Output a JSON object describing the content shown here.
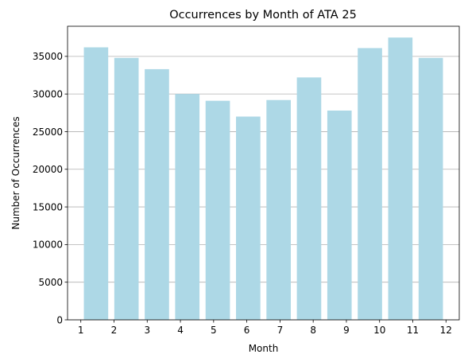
{
  "chart_data": {
    "type": "bar",
    "title": "Occurrences by Month of ATA 25",
    "xlabel": "Month",
    "ylabel": "Number of Occurrences",
    "x_ticks": [
      1,
      2,
      3,
      4,
      5,
      6,
      7,
      8,
      9,
      10,
      11,
      12
    ],
    "categories": [
      "1",
      "2",
      "3",
      "4",
      "5",
      "6",
      "7",
      "8",
      "9",
      "10",
      "11",
      "12"
    ],
    "values": [
      36200,
      34800,
      33300,
      30000,
      29100,
      27000,
      29200,
      32200,
      27800,
      36100,
      37500,
      34800
    ],
    "ylim": [
      0,
      39000
    ],
    "xlim": [
      0.6,
      12.4
    ],
    "y_ticks": [
      0,
      5000,
      10000,
      15000,
      20000,
      25000,
      30000,
      35000
    ],
    "grid": "y",
    "bar_color": "#add8e6"
  }
}
